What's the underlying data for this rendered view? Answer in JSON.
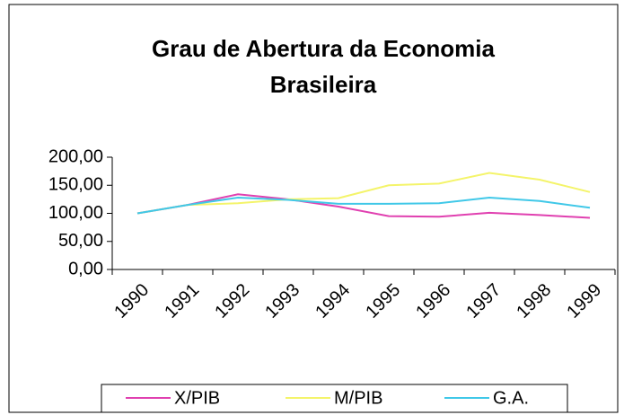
{
  "chart_data": {
    "type": "line",
    "title": "Grau de Abertura da Economia Brasileira",
    "categories": [
      "1990",
      "1991",
      "1992",
      "1993",
      "1994",
      "1995",
      "1996",
      "1997",
      "1998",
      "1999"
    ],
    "series": [
      {
        "name": "X/PIB",
        "color": "#e040b0",
        "values": [
          100,
          115,
          134,
          125,
          112,
          95,
          94,
          101,
          97,
          92
        ]
      },
      {
        "name": "M/PIB",
        "color": "#f4f46a",
        "values": [
          100,
          115,
          118,
          125,
          127,
          150,
          153,
          172,
          160,
          138
        ]
      },
      {
        "name": "G.A.",
        "color": "#40c8e8",
        "values": [
          100,
          115,
          128,
          124,
          117,
          117,
          118,
          128,
          122,
          110
        ]
      }
    ],
    "ylim": [
      0,
      200
    ],
    "yticks": [
      {
        "value": 0,
        "label": "0,00"
      },
      {
        "value": 50,
        "label": "50,00"
      },
      {
        "value": 100,
        "label": "100,00"
      },
      {
        "value": 150,
        "label": "150,00"
      },
      {
        "value": 200,
        "label": "200,00"
      }
    ],
    "legend": "bottom"
  }
}
